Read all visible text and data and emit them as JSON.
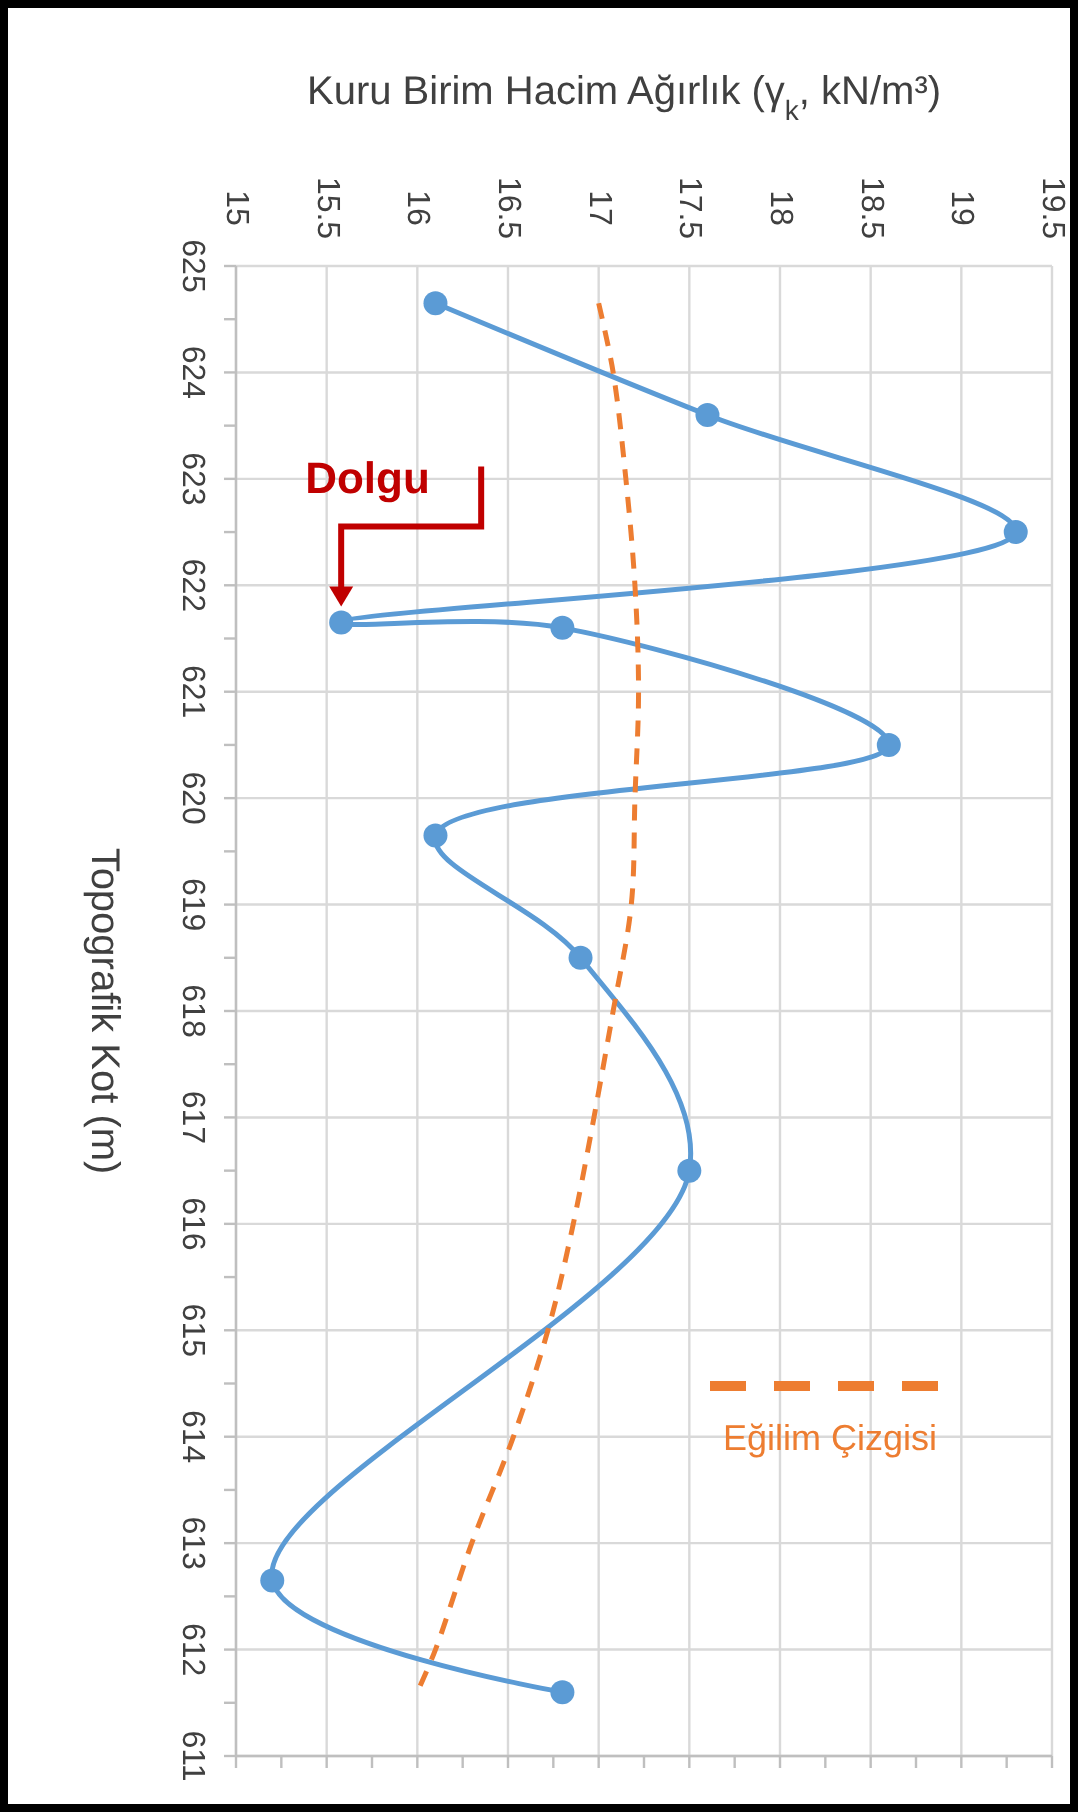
{
  "chart_data": {
    "type": "line",
    "xlabel": "Kuru Birim Hacim Ağırlık (γ$_{k}$, kN/m³)",
    "ylabel": "Topografik Kot (m)",
    "xlim": [
      15,
      19.5
    ],
    "xticks": [
      15,
      {
        "value": 15.25,
        "label": null
      },
      15.5,
      {
        "value": 15.75,
        "label": null
      },
      16,
      {
        "value": 16.25,
        "label": null
      },
      16.5,
      {
        "value": 16.75,
        "label": null
      },
      17,
      {
        "value": 17.25,
        "label": null
      },
      17.5,
      {
        "value": 17.75,
        "label": null
      },
      18,
      {
        "value": 18.25,
        "label": null
      },
      18.5,
      {
        "value": 18.75,
        "label": null
      },
      19,
      {
        "value": 19.25,
        "label": null
      },
      19.5
    ],
    "ylim": [
      611,
      625
    ],
    "yticks": [
      625,
      {
        "value": 624.5,
        "label": null
      },
      624,
      {
        "value": 623.5,
        "label": null
      },
      623,
      {
        "value": 622.5,
        "label": null
      },
      622,
      {
        "value": 621.5,
        "label": null
      },
      621,
      {
        "value": 620.5,
        "label": null
      },
      620,
      {
        "value": 619.5,
        "label": null
      },
      619,
      {
        "value": 618.5,
        "label": null
      },
      618,
      {
        "value": 617.5,
        "label": null
      },
      617,
      {
        "value": 616.5,
        "label": null
      },
      616,
      {
        "value": 615.5,
        "label": null
      },
      615,
      {
        "value": 614.5,
        "label": null
      },
      614,
      {
        "value": 613.5,
        "label": null
      },
      613,
      {
        "value": 612.5,
        "label": null
      },
      612,
      {
        "value": 611.5,
        "label": null
      },
      611
    ],
    "grid": true,
    "legend": "bottom right",
    "series": [
      {
        "color": "#5b9bd5",
        "marker": "circle",
        "line_style": "solid",
        "x": [
          16.1,
          17.6,
          19.3,
          15.58,
          16.8,
          18.6,
          16.1,
          16.9,
          17.5,
          15.2,
          16.8
        ],
        "values": [
          624.65,
          623.6,
          622.5,
          621.65,
          621.6,
          620.5,
          619.65,
          618.5,
          616.5,
          612.65,
          611.6
        ]
      },
      {
        "name": "Eğilim Çizgisi",
        "color": "#ed7d31",
        "marker": "none",
        "line_style": "dashed",
        "x": [
          17.0,
          17.08,
          17.15,
          17.2,
          17.22,
          17.2,
          17.18,
          17.08,
          16.86,
          16.72,
          16.53,
          16.3,
          16.1,
          16.0
        ],
        "values": [
          624.65,
          624,
          623,
          622,
          621,
          620,
          619,
          618,
          616,
          615,
          614,
          613,
          612,
          611.6
        ]
      }
    ],
    "annotations": [
      {
        "text": "Dolgu",
        "x": 15.58,
        "y": 621.65
      }
    ]
  }
}
